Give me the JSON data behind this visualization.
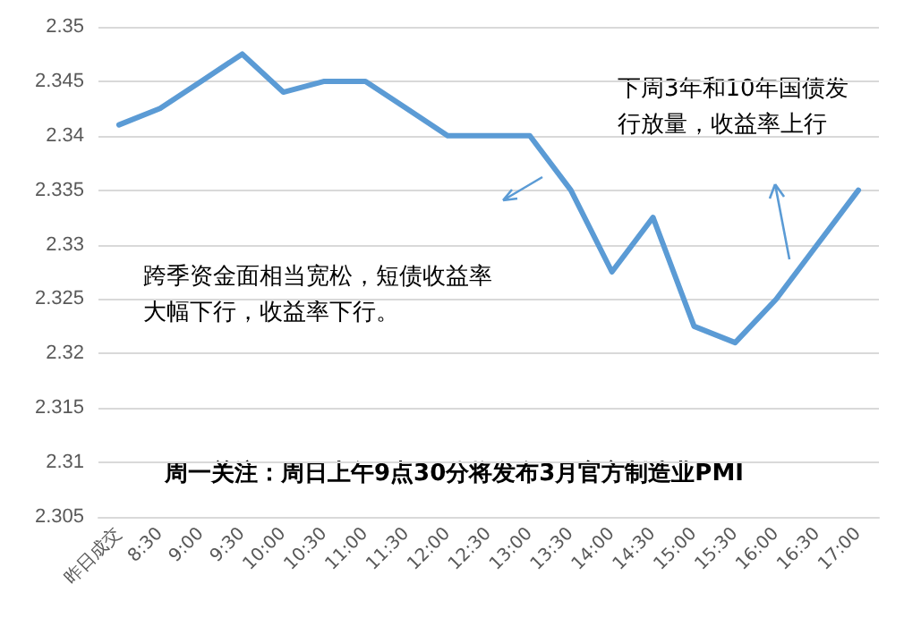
{
  "chart_data": {
    "type": "line",
    "categories": [
      "昨日成交",
      "8:30",
      "9:00",
      "9:30",
      "10:00",
      "10:30",
      "11:00",
      "11:30",
      "12:00",
      "12:30",
      "13:00",
      "13:30",
      "14:00",
      "14:30",
      "15:00",
      "15:30",
      "16:00",
      "16:30",
      "17:00"
    ],
    "series": [
      {
        "color": "#5b9bd5",
        "values": [
          2.341,
          2.3425,
          2.345,
          2.3475,
          2.344,
          2.345,
          2.345,
          2.3425,
          2.34,
          2.34,
          2.34,
          2.335,
          2.3275,
          2.3325,
          2.3225,
          2.321,
          2.325,
          2.33,
          2.335
        ]
      }
    ],
    "ylim": [
      2.305,
      2.35
    ],
    "yticks": [
      2.305,
      2.31,
      2.315,
      2.32,
      2.325,
      2.33,
      2.335,
      2.34,
      2.345,
      2.35
    ],
    "grid": "y",
    "marker": "none",
    "line_style": "solid",
    "annotations": [
      "跨季资金面相当宽松，短债收益率大幅下行，收益率下行。",
      "下周3年和10年国债发行放量，收益率上行",
      "周一关注：周日上午9点30分将发布3月官方制造业PMI"
    ]
  }
}
